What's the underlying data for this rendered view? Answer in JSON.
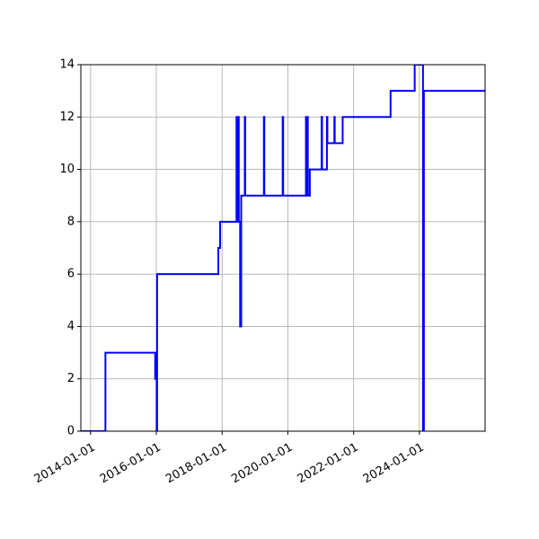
{
  "chart_data": {
    "type": "line",
    "title": "",
    "xlabel": "",
    "ylabel": "",
    "x_axis": "date",
    "xlim": [
      "2013-09-15",
      "2025-12-31"
    ],
    "ylim": [
      0,
      14
    ],
    "grid": true,
    "x_ticks": [
      "2014-01-01",
      "2016-01-01",
      "2018-01-01",
      "2020-01-01",
      "2022-01-01",
      "2024-01-01"
    ],
    "y_ticks": [
      "0",
      "2",
      "4",
      "6",
      "8",
      "10",
      "12",
      "14"
    ],
    "step": "post",
    "series": [
      {
        "color": "#0000ff",
        "points": [
          [
            "2013-09-15",
            0
          ],
          [
            "2014-06-15",
            3
          ],
          [
            "2015-12-20",
            2
          ],
          [
            "2015-12-28",
            3
          ],
          [
            "2016-01-05",
            0
          ],
          [
            "2016-01-10",
            6
          ],
          [
            "2017-11-20",
            7
          ],
          [
            "2017-12-10",
            8
          ],
          [
            "2018-06-10",
            12
          ],
          [
            "2018-06-15",
            8
          ],
          [
            "2018-06-20",
            12
          ],
          [
            "2018-06-25",
            8
          ],
          [
            "2018-07-01",
            12
          ],
          [
            "2018-07-05",
            8
          ],
          [
            "2018-07-20",
            4
          ],
          [
            "2018-08-01",
            9
          ],
          [
            "2018-09-10",
            12
          ],
          [
            "2018-09-15",
            9
          ],
          [
            "2019-04-10",
            12
          ],
          [
            "2019-04-15",
            9
          ],
          [
            "2019-11-05",
            12
          ],
          [
            "2019-11-10",
            9
          ],
          [
            "2020-07-20",
            12
          ],
          [
            "2020-07-25",
            9
          ],
          [
            "2020-08-05",
            12
          ],
          [
            "2020-08-10",
            9
          ],
          [
            "2020-09-01",
            10
          ],
          [
            "2021-01-10",
            12
          ],
          [
            "2021-01-15",
            10
          ],
          [
            "2021-03-10",
            12
          ],
          [
            "2021-03-15",
            11
          ],
          [
            "2021-06-01",
            12
          ],
          [
            "2021-06-05",
            11
          ],
          [
            "2021-09-01",
            12
          ],
          [
            "2023-02-15",
            13
          ],
          [
            "2023-11-10",
            14
          ],
          [
            "2024-02-10",
            0
          ],
          [
            "2024-02-20",
            13
          ],
          [
            "2025-12-31",
            13
          ]
        ]
      }
    ]
  }
}
